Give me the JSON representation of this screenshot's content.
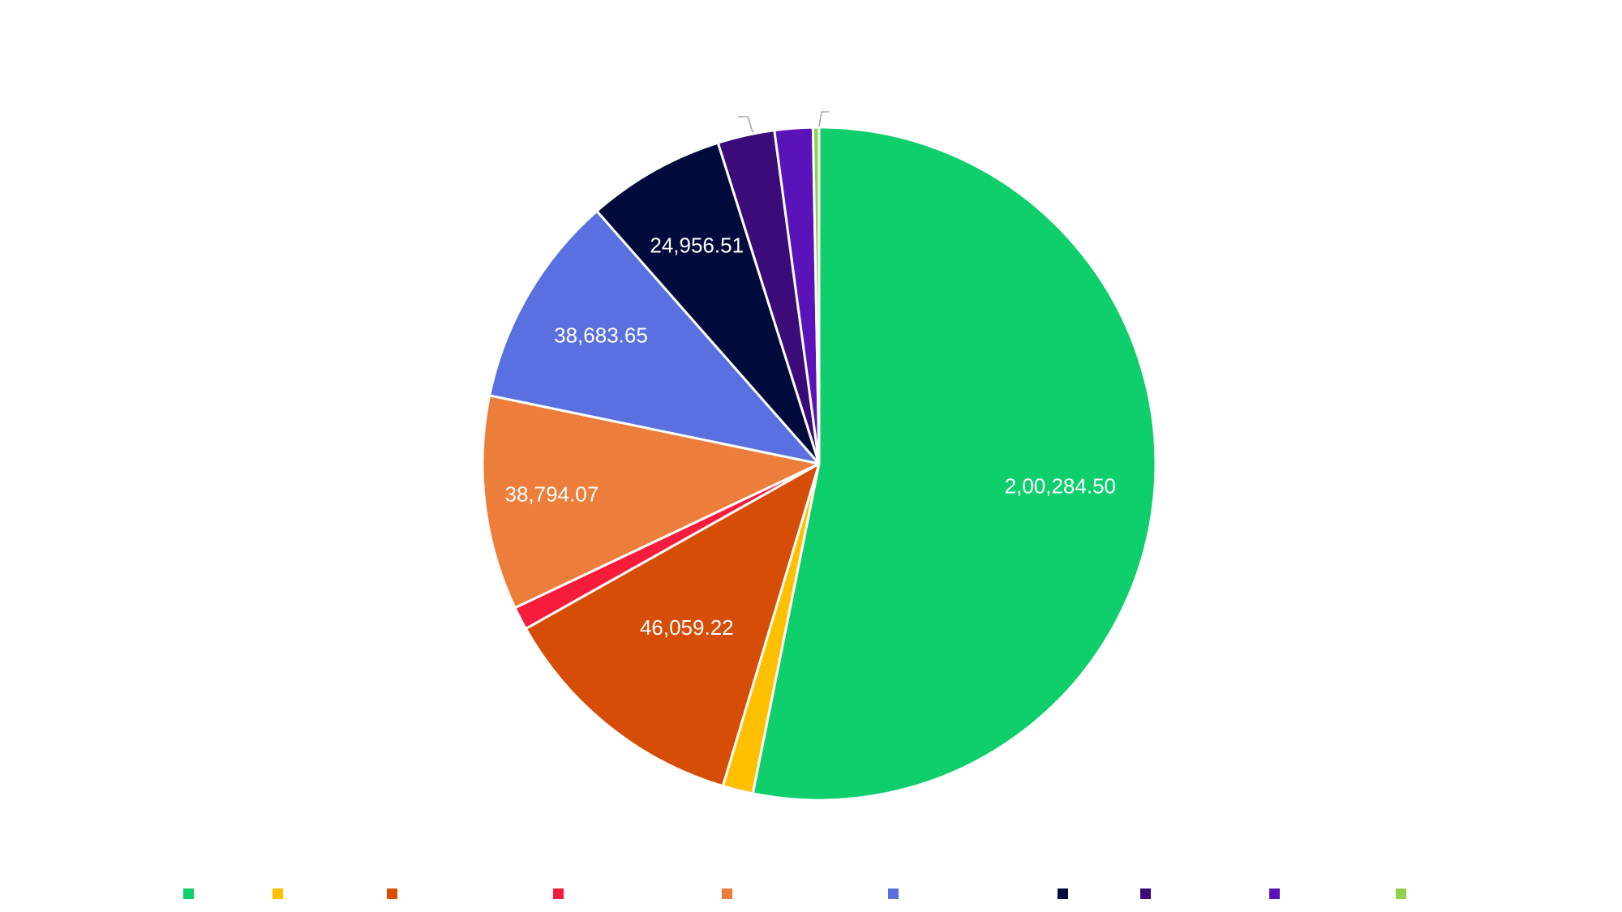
{
  "chart_data": {
    "type": "pie",
    "title": "",
    "start_angle_deg": 0,
    "direction": "clockwise",
    "slices": [
      {
        "label": "",
        "value": 200284.5,
        "value_label": "2,00,284.50",
        "color": "#0ecf6c",
        "show_label": true
      },
      {
        "label": "",
        "value": 5500.0,
        "value_label": "",
        "color": "#ffc000",
        "show_label": false
      },
      {
        "label": "",
        "value": 46059.22,
        "value_label": "46,059.22",
        "color": "#d64d07",
        "show_label": true
      },
      {
        "label": "",
        "value": 4200.0,
        "value_label": "",
        "color": "#f71b3c",
        "show_label": false
      },
      {
        "label": "",
        "value": 38794.07,
        "value_label": "38,794.07",
        "color": "#ed7d3b",
        "show_label": true
      },
      {
        "label": "",
        "value": 38683.65,
        "value_label": "38,683.65",
        "color": "#5a70e0",
        "show_label": true
      },
      {
        "label": "",
        "value": 24956.51,
        "value_label": "24,956.51",
        "color": "#020c3c",
        "show_label": true
      },
      {
        "label": "",
        "value": 10300.0,
        "value_label": "",
        "color": "#3c0b7a",
        "show_label": false
      },
      {
        "label": "",
        "value": 6900.0,
        "value_label": "",
        "color": "#5a13b8",
        "show_label": false
      },
      {
        "label": "",
        "value": 1100.0,
        "value_label": "",
        "color": "#8fd14f",
        "show_label": false
      }
    ],
    "legend": {
      "position": "bottom",
      "entries": [
        {
          "label": "",
          "color": "#0ecf6c"
        },
        {
          "label": "",
          "color": "#ffc000"
        },
        {
          "label": "",
          "color": "#d64d07"
        },
        {
          "label": "",
          "color": "#f71b3c"
        },
        {
          "label": "",
          "color": "#ed7d3b"
        },
        {
          "label": "",
          "color": "#5a70e0"
        },
        {
          "label": "",
          "color": "#020c3c"
        },
        {
          "label": "",
          "color": "#3c0b7a"
        },
        {
          "label": "",
          "color": "#5a13b8"
        },
        {
          "label": "",
          "color": "#8fd14f"
        }
      ]
    }
  }
}
